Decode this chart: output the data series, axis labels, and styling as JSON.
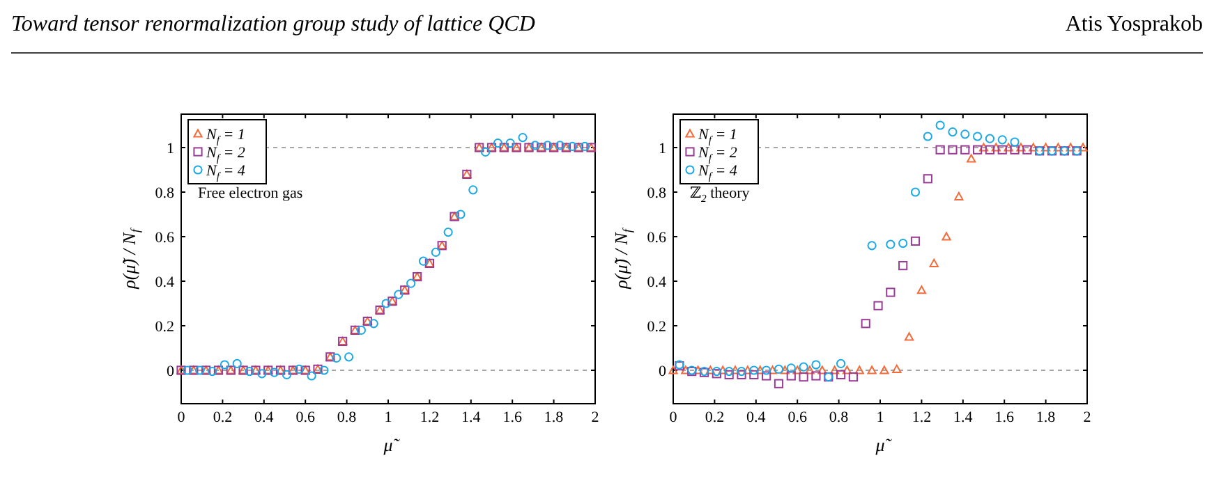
{
  "chart_data": [
    {
      "type": "scatter",
      "xlabel": "μ̃",
      "ylabel": "ρ(μ̃) / N$_{f}$",
      "xlim": [
        0,
        2
      ],
      "ylim": [
        -0.15,
        1.15
      ],
      "xticks": [
        0,
        0.2,
        0.4,
        0.6,
        0.8,
        1,
        1.2,
        1.4,
        1.6,
        1.8,
        2
      ],
      "yticks": [
        0,
        0.2,
        0.4,
        0.6,
        0.8,
        1
      ],
      "legend": "top left",
      "grid": false,
      "ref_lines": [
        {
          "axis": "y",
          "value": 0,
          "color": "#888888",
          "line_style": "dashed"
        },
        {
          "axis": "y",
          "value": 1,
          "color": "#888888",
          "line_style": "dashed"
        }
      ],
      "annotations": [
        "Toward tensor renormalization group study of lattice QCD",
        "Free electron gas"
      ],
      "series": [
        {
          "name": "N$_{f}$ = 1",
          "color": "#f26b3a",
          "marker": "triangle",
          "x": [
            0,
            0.06,
            0.12,
            0.18,
            0.24,
            0.3,
            0.36,
            0.42,
            0.48,
            0.54,
            0.6,
            0.66,
            0.72,
            0.78,
            0.84,
            0.9,
            0.96,
            1.02,
            1.08,
            1.14,
            1.2,
            1.26,
            1.32,
            1.38,
            1.44,
            1.5,
            1.56,
            1.62,
            1.68,
            1.74,
            1.8,
            1.86,
            1.92,
            1.98
          ],
          "values": [
            0,
            0,
            0,
            0,
            0,
            0,
            0,
            0,
            0,
            0,
            0,
            0.005,
            0.06,
            0.13,
            0.18,
            0.22,
            0.27,
            0.31,
            0.36,
            0.42,
            0.48,
            0.56,
            0.69,
            0.88,
            1,
            1,
            1,
            1,
            1,
            1,
            1,
            1,
            1,
            1
          ]
        },
        {
          "name": "N$_{f}$ = 2",
          "color": "#9a3b95",
          "marker": "square",
          "x": [
            0,
            0.06,
            0.12,
            0.18,
            0.24,
            0.3,
            0.36,
            0.42,
            0.48,
            0.54,
            0.6,
            0.66,
            0.72,
            0.78,
            0.84,
            0.9,
            0.96,
            1.02,
            1.08,
            1.14,
            1.2,
            1.26,
            1.32,
            1.38,
            1.44,
            1.5,
            1.56,
            1.62,
            1.68,
            1.74,
            1.8,
            1.86,
            1.92,
            1.98
          ],
          "values": [
            0,
            0,
            0,
            0,
            0,
            0,
            0,
            0,
            0,
            0,
            0,
            0.005,
            0.06,
            0.13,
            0.18,
            0.22,
            0.27,
            0.31,
            0.36,
            0.42,
            0.48,
            0.56,
            0.69,
            0.88,
            1,
            1,
            1,
            1,
            1,
            1,
            1,
            1,
            1,
            1
          ]
        },
        {
          "name": "N$_{f}$ = 4",
          "color": "#1aa9e6",
          "marker": "circle",
          "x": [
            0.03,
            0.09,
            0.15,
            0.21,
            0.27,
            0.33,
            0.39,
            0.45,
            0.51,
            0.57,
            0.63,
            0.69,
            0.75,
            0.81,
            0.87,
            0.93,
            0.99,
            1.05,
            1.11,
            1.17,
            1.23,
            1.29,
            1.35,
            1.41,
            1.47,
            1.53,
            1.59,
            1.65,
            1.71,
            1.77,
            1.83,
            1.89,
            1.95
          ],
          "values": [
            0,
            0,
            -0.005,
            0.025,
            0.03,
            -0.005,
            -0.015,
            -0.01,
            -0.02,
            0.005,
            -0.025,
            0,
            0.055,
            0.06,
            0.18,
            0.21,
            0.3,
            0.34,
            0.39,
            0.49,
            0.53,
            0.62,
            0.7,
            0.81,
            0.98,
            1.02,
            1.02,
            1.045,
            1.01,
            1.01,
            1.01,
            1.005,
            1.005
          ]
        }
      ]
    },
    {
      "type": "scatter",
      "xlabel": "μ̃",
      "ylabel": "ρ(μ̃) / N$_{f}$",
      "xlim": [
        0,
        2
      ],
      "ylim": [
        -0.15,
        1.15
      ],
      "xticks": [
        0,
        0.2,
        0.4,
        0.6,
        0.8,
        1,
        1.2,
        1.4,
        1.6,
        1.8,
        2
      ],
      "yticks": [
        0,
        0.2,
        0.4,
        0.6,
        0.8,
        1
      ],
      "legend": "top left",
      "grid": false,
      "ref_lines": [
        {
          "axis": "y",
          "value": 0,
          "color": "#888888",
          "line_style": "dashed"
        },
        {
          "axis": "y",
          "value": 1,
          "color": "#888888",
          "line_style": "dashed"
        }
      ],
      "annotations": [
        "Atis Yosprakob",
        "ℤ$_{2}$ theory"
      ],
      "series": [
        {
          "name": "N$_{f}$ = 1",
          "color": "#f26b3a",
          "marker": "triangle",
          "x": [
            0,
            0.06,
            0.12,
            0.18,
            0.24,
            0.3,
            0.36,
            0.42,
            0.48,
            0.54,
            0.6,
            0.66,
            0.72,
            0.78,
            0.84,
            0.9,
            0.96,
            1.02,
            1.08,
            1.14,
            1.2,
            1.26,
            1.32,
            1.38,
            1.44,
            1.5,
            1.56,
            1.62,
            1.68,
            1.74,
            1.8,
            1.86,
            1.92,
            1.98
          ],
          "values": [
            0,
            0,
            0,
            0,
            0,
            0,
            0,
            0,
            0,
            0,
            0,
            0,
            0,
            0,
            0,
            0,
            0,
            0,
            0.005,
            0.15,
            0.36,
            0.48,
            0.6,
            0.78,
            0.95,
            1,
            1,
            1,
            1,
            1,
            1,
            1,
            1,
            1
          ]
        },
        {
          "name": "N$_{f}$ = 2",
          "color": "#9a3b95",
          "marker": "square",
          "x": [
            0.03,
            0.09,
            0.15,
            0.21,
            0.27,
            0.33,
            0.39,
            0.45,
            0.51,
            0.57,
            0.63,
            0.69,
            0.75,
            0.81,
            0.87,
            0.93,
            0.99,
            1.05,
            1.11,
            1.17,
            1.23,
            1.29,
            1.35,
            1.41,
            1.47,
            1.53,
            1.59,
            1.65,
            1.71,
            1.77,
            1.83,
            1.89,
            1.95
          ],
          "values": [
            0.02,
            -0.005,
            -0.01,
            -0.015,
            -0.02,
            -0.02,
            -0.02,
            -0.025,
            -0.06,
            -0.025,
            -0.03,
            -0.025,
            -0.03,
            -0.02,
            -0.03,
            0.21,
            0.29,
            0.35,
            0.47,
            0.58,
            0.86,
            0.99,
            0.99,
            0.99,
            0.99,
            0.99,
            0.99,
            0.99,
            0.99,
            0.985,
            0.985,
            0.985,
            0.985
          ]
        },
        {
          "name": "N$_{f}$ = 4",
          "color": "#1aa9e6",
          "marker": "circle",
          "x": [
            0.03,
            0.09,
            0.15,
            0.21,
            0.27,
            0.33,
            0.39,
            0.45,
            0.51,
            0.57,
            0.63,
            0.69,
            0.75,
            0.81,
            0.96,
            1.05,
            1.11,
            1.17,
            1.23,
            1.29,
            1.35,
            1.41,
            1.47,
            1.53,
            1.59,
            1.65,
            1.77,
            1.83,
            1.89,
            1.95
          ],
          "values": [
            0.025,
            0,
            -0.005,
            -0.005,
            -0.005,
            -0.005,
            0,
            0,
            0.005,
            0.01,
            0.015,
            0.025,
            -0.03,
            0.03,
            0.56,
            0.565,
            0.57,
            0.8,
            1.05,
            1.1,
            1.07,
            1.06,
            1.05,
            1.04,
            1.035,
            1.025,
            0.985,
            0.985,
            0.985,
            0.985
          ]
        }
      ]
    }
  ]
}
